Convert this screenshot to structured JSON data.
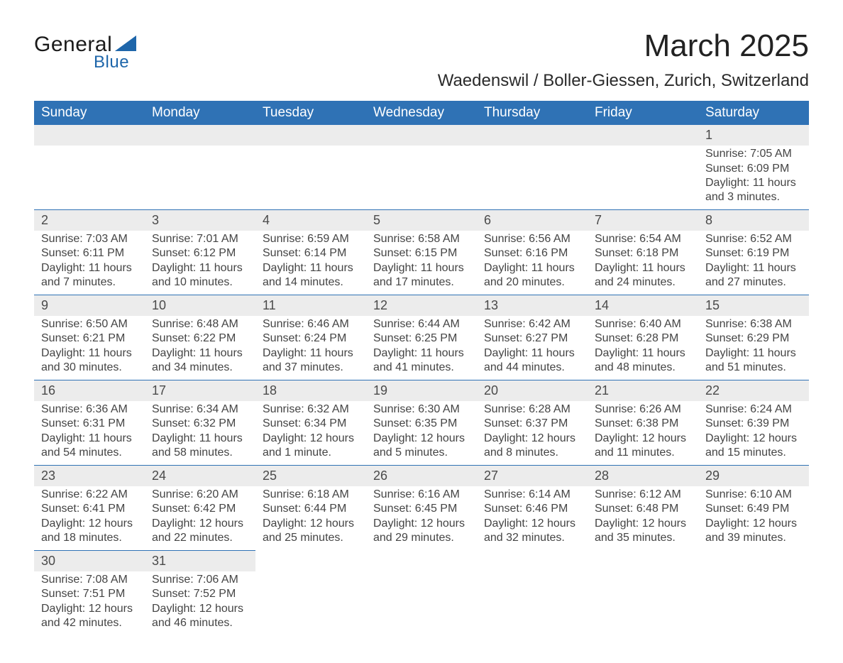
{
  "logo": {
    "general": "General",
    "blue": "Blue",
    "accent_color": "#1e66aa"
  },
  "title": "March 2025",
  "location": "Waedenswil / Boller-Giessen, Zurich, Switzerland",
  "colors": {
    "header_bg": "#2f72b5",
    "header_text": "#ffffff",
    "daynum_bg": "#ececec",
    "row_border": "#2f72b5",
    "text": "#3a3a3a"
  },
  "day_headers": [
    "Sunday",
    "Monday",
    "Tuesday",
    "Wednesday",
    "Thursday",
    "Friday",
    "Saturday"
  ],
  "weeks": [
    [
      null,
      null,
      null,
      null,
      null,
      null,
      {
        "n": "1",
        "sr": "Sunrise: 7:05 AM",
        "ss": "Sunset: 6:09 PM",
        "dl": "Daylight: 11 hours and 3 minutes."
      }
    ],
    [
      {
        "n": "2",
        "sr": "Sunrise: 7:03 AM",
        "ss": "Sunset: 6:11 PM",
        "dl": "Daylight: 11 hours and 7 minutes."
      },
      {
        "n": "3",
        "sr": "Sunrise: 7:01 AM",
        "ss": "Sunset: 6:12 PM",
        "dl": "Daylight: 11 hours and 10 minutes."
      },
      {
        "n": "4",
        "sr": "Sunrise: 6:59 AM",
        "ss": "Sunset: 6:14 PM",
        "dl": "Daylight: 11 hours and 14 minutes."
      },
      {
        "n": "5",
        "sr": "Sunrise: 6:58 AM",
        "ss": "Sunset: 6:15 PM",
        "dl": "Daylight: 11 hours and 17 minutes."
      },
      {
        "n": "6",
        "sr": "Sunrise: 6:56 AM",
        "ss": "Sunset: 6:16 PM",
        "dl": "Daylight: 11 hours and 20 minutes."
      },
      {
        "n": "7",
        "sr": "Sunrise: 6:54 AM",
        "ss": "Sunset: 6:18 PM",
        "dl": "Daylight: 11 hours and 24 minutes."
      },
      {
        "n": "8",
        "sr": "Sunrise: 6:52 AM",
        "ss": "Sunset: 6:19 PM",
        "dl": "Daylight: 11 hours and 27 minutes."
      }
    ],
    [
      {
        "n": "9",
        "sr": "Sunrise: 6:50 AM",
        "ss": "Sunset: 6:21 PM",
        "dl": "Daylight: 11 hours and 30 minutes."
      },
      {
        "n": "10",
        "sr": "Sunrise: 6:48 AM",
        "ss": "Sunset: 6:22 PM",
        "dl": "Daylight: 11 hours and 34 minutes."
      },
      {
        "n": "11",
        "sr": "Sunrise: 6:46 AM",
        "ss": "Sunset: 6:24 PM",
        "dl": "Daylight: 11 hours and 37 minutes."
      },
      {
        "n": "12",
        "sr": "Sunrise: 6:44 AM",
        "ss": "Sunset: 6:25 PM",
        "dl": "Daylight: 11 hours and 41 minutes."
      },
      {
        "n": "13",
        "sr": "Sunrise: 6:42 AM",
        "ss": "Sunset: 6:27 PM",
        "dl": "Daylight: 11 hours and 44 minutes."
      },
      {
        "n": "14",
        "sr": "Sunrise: 6:40 AM",
        "ss": "Sunset: 6:28 PM",
        "dl": "Daylight: 11 hours and 48 minutes."
      },
      {
        "n": "15",
        "sr": "Sunrise: 6:38 AM",
        "ss": "Sunset: 6:29 PM",
        "dl": "Daylight: 11 hours and 51 minutes."
      }
    ],
    [
      {
        "n": "16",
        "sr": "Sunrise: 6:36 AM",
        "ss": "Sunset: 6:31 PM",
        "dl": "Daylight: 11 hours and 54 minutes."
      },
      {
        "n": "17",
        "sr": "Sunrise: 6:34 AM",
        "ss": "Sunset: 6:32 PM",
        "dl": "Daylight: 11 hours and 58 minutes."
      },
      {
        "n": "18",
        "sr": "Sunrise: 6:32 AM",
        "ss": "Sunset: 6:34 PM",
        "dl": "Daylight: 12 hours and 1 minute."
      },
      {
        "n": "19",
        "sr": "Sunrise: 6:30 AM",
        "ss": "Sunset: 6:35 PM",
        "dl": "Daylight: 12 hours and 5 minutes."
      },
      {
        "n": "20",
        "sr": "Sunrise: 6:28 AM",
        "ss": "Sunset: 6:37 PM",
        "dl": "Daylight: 12 hours and 8 minutes."
      },
      {
        "n": "21",
        "sr": "Sunrise: 6:26 AM",
        "ss": "Sunset: 6:38 PM",
        "dl": "Daylight: 12 hours and 11 minutes."
      },
      {
        "n": "22",
        "sr": "Sunrise: 6:24 AM",
        "ss": "Sunset: 6:39 PM",
        "dl": "Daylight: 12 hours and 15 minutes."
      }
    ],
    [
      {
        "n": "23",
        "sr": "Sunrise: 6:22 AM",
        "ss": "Sunset: 6:41 PM",
        "dl": "Daylight: 12 hours and 18 minutes."
      },
      {
        "n": "24",
        "sr": "Sunrise: 6:20 AM",
        "ss": "Sunset: 6:42 PM",
        "dl": "Daylight: 12 hours and 22 minutes."
      },
      {
        "n": "25",
        "sr": "Sunrise: 6:18 AM",
        "ss": "Sunset: 6:44 PM",
        "dl": "Daylight: 12 hours and 25 minutes."
      },
      {
        "n": "26",
        "sr": "Sunrise: 6:16 AM",
        "ss": "Sunset: 6:45 PM",
        "dl": "Daylight: 12 hours and 29 minutes."
      },
      {
        "n": "27",
        "sr": "Sunrise: 6:14 AM",
        "ss": "Sunset: 6:46 PM",
        "dl": "Daylight: 12 hours and 32 minutes."
      },
      {
        "n": "28",
        "sr": "Sunrise: 6:12 AM",
        "ss": "Sunset: 6:48 PM",
        "dl": "Daylight: 12 hours and 35 minutes."
      },
      {
        "n": "29",
        "sr": "Sunrise: 6:10 AM",
        "ss": "Sunset: 6:49 PM",
        "dl": "Daylight: 12 hours and 39 minutes."
      }
    ],
    [
      {
        "n": "30",
        "sr": "Sunrise: 7:08 AM",
        "ss": "Sunset: 7:51 PM",
        "dl": "Daylight: 12 hours and 42 minutes."
      },
      {
        "n": "31",
        "sr": "Sunrise: 7:06 AM",
        "ss": "Sunset: 7:52 PM",
        "dl": "Daylight: 12 hours and 46 minutes."
      },
      null,
      null,
      null,
      null,
      null
    ]
  ]
}
